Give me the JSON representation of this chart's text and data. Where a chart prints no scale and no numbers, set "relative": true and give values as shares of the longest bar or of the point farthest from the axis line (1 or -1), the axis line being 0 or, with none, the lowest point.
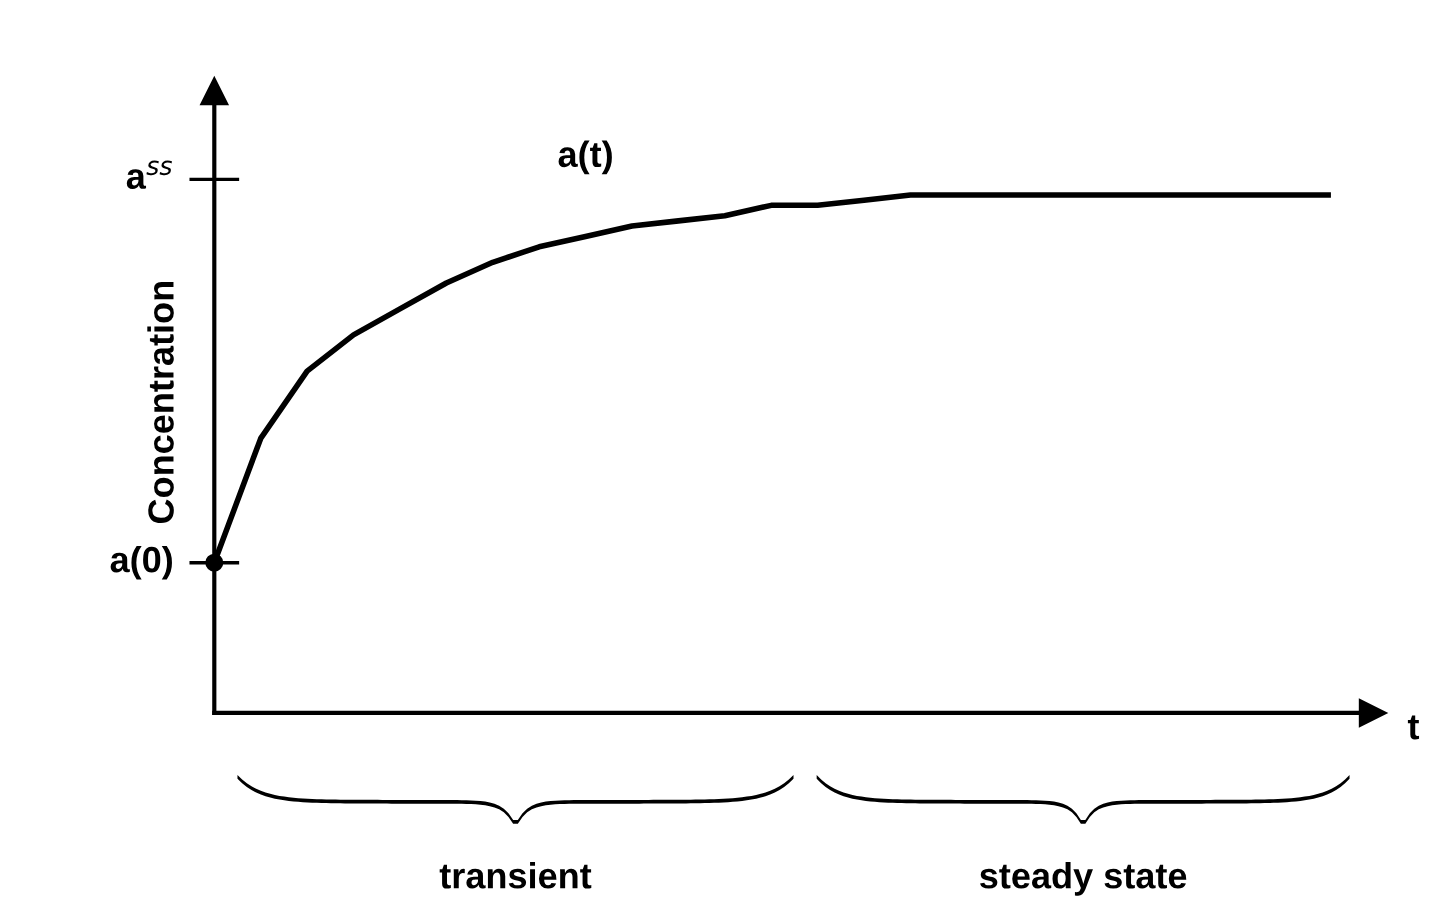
{
  "chart_data": {
    "type": "line",
    "ylabel": "Concentration",
    "xlabel": "t",
    "categories": [
      null,
      null,
      null,
      null,
      null,
      null,
      null,
      null,
      null,
      null,
      null,
      null,
      null,
      null,
      null,
      null,
      null,
      null,
      null,
      null,
      null,
      null,
      null,
      null,
      null
    ],
    "relative": true,
    "series": [
      {
        "name": "a(t)",
        "color": "#000000",
        "values": [
          0.29,
          0.53,
          0.66,
          0.73,
          0.78,
          0.83,
          0.87,
          0.9,
          0.92,
          0.94,
          0.95,
          0.96,
          0.98,
          0.98,
          0.99,
          1.0,
          1.0,
          1.0,
          1.0,
          1.0,
          1.0,
          1.0,
          1.0,
          1.0,
          1.0
        ]
      }
    ],
    "annotations": [
      "a(0)",
      "a$^{ss}$",
      "transient",
      "steady state"
    ]
  }
}
